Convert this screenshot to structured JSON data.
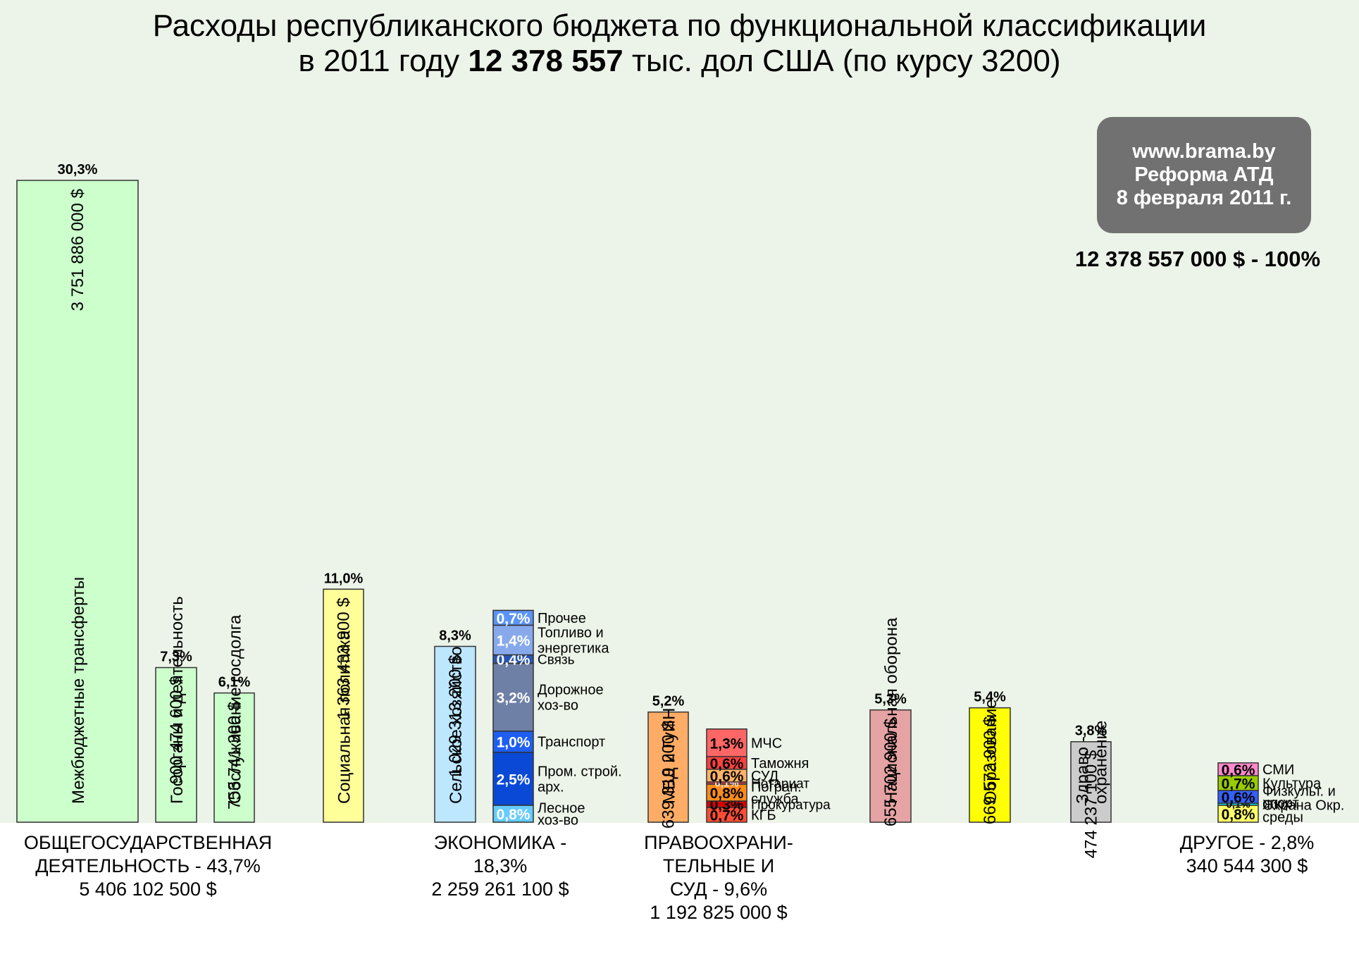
{
  "title_line1": "Расходы республиканского бюджета по функциональной классификации",
  "title_line2_prefix": "в 2011 году",
  "title_line2_bold": "12 378 557",
  "title_line2_suffix": "тыс. дол США (по курсу 3200)",
  "badge": {
    "line1": "www.brama.by",
    "line2": "Реформа АТД",
    "line3": "8 февраля 2011 г."
  },
  "total_text": "12 378 557 000 $ - 100%",
  "groups": {
    "general": {
      "line1": "ОБЩЕГОСУДАРСТВЕННАЯ",
      "line2": "ДЕЯТЕЛЬНОСТЬ - 43,7%",
      "line3": "5 406 102 500 $"
    },
    "economy": {
      "line1": "ЭКОНОМИКА -",
      "line2": "18,3%",
      "line3": "2 259 261 100 $"
    },
    "law": {
      "line1": "ПРАВООХРАНИ-",
      "line2": "ТЕЛЬНЫЕ И",
      "line3": "СУД - 9,6%",
      "line4": "1 192 825 000 $"
    },
    "other": {
      "line1": "ДРУГОЕ - 2,8%",
      "line2": "340 544 300 $"
    }
  },
  "chart_data": {
    "type": "bar",
    "unit": "%",
    "ylim": [
      0,
      30.3
    ],
    "grid": false,
    "bars": [
      {
        "name": "Межбюджетные трансферты",
        "value": 30.3,
        "pct_label": "30,3%",
        "amount": "3 751 886 000 $",
        "color": "#ccffcc"
      },
      {
        "name": "Госорганы и деятельность",
        "value": 7.3,
        "pct_label": "7,3%",
        "amount": "900 474 600 $",
        "color": "#ccffcc"
      },
      {
        "name": "Обслуживание госдолга",
        "value": 6.1,
        "pct_label": "6,1%",
        "amount": "753 741 300 $",
        "color": "#ccffcc"
      },
      {
        "name": "Социальная политика",
        "value": 11.0,
        "pct_label": "11,0%",
        "amount": "1 363 433 900 $",
        "color": "#ffff99"
      },
      {
        "name": "Сельское хозяйство",
        "value": 8.3,
        "pct_label": "8,3%",
        "amount": "1 029 313 200 $",
        "color": "#bde6ff"
      },
      {
        "name": "МВД и ГуИН",
        "value": 5.2,
        "pct_label": "5,2%",
        "amount": "639 319 200 $",
        "color": "#ffad66"
      },
      {
        "name": "Национальная оборона",
        "value": 5.3,
        "pct_label": "5,3%",
        "amount": "655 702 900 $",
        "color": "#e5a3a3"
      },
      {
        "name": "Образование",
        "value": 5.4,
        "pct_label": "5,4%",
        "amount": "669 572 900 $",
        "color": "#ffff00"
      },
      {
        "name": "Здраво - охранение",
        "value": 3.8,
        "pct_label": "3,8%",
        "amount": "474 237 100 $",
        "color": "#cccccc"
      }
    ],
    "stacks": [
      {
        "group": "economy",
        "segments": [
          {
            "value": 0.8,
            "label": "0,8%",
            "name": "Лесное хоз-во",
            "color": "#66ccff"
          },
          {
            "value": 2.5,
            "label": "2,5%",
            "name": "Пром. строй. арх.",
            "color": "#0a49d6"
          },
          {
            "value": 1.0,
            "label": "1,0%",
            "name": "Транспорт",
            "color": "#1e5ef0"
          },
          {
            "value": 3.2,
            "label": "3,2%",
            "name": "Дорожное хоз-во",
            "color": "#6e80a6"
          },
          {
            "value": 0.4,
            "label": "0,4%",
            "name": "Связь",
            "color": "#2855b0"
          },
          {
            "value": 1.4,
            "label": "1,4%",
            "name": "Топливо и энергетика",
            "color": "#87a9ec"
          },
          {
            "value": 0.7,
            "label": "0,7%",
            "name": "Прочее",
            "color": "#5b94f5"
          }
        ]
      },
      {
        "group": "law",
        "segments": [
          {
            "value": 0.7,
            "label": "0,7%",
            "name": "КГБ",
            "color": "#ff4d33"
          },
          {
            "value": 0.3,
            "label": "0,3%",
            "name": "Прокуратура",
            "color": "#d90000"
          },
          {
            "value": 0.8,
            "label": "0,8%",
            "name": "Погран. служба",
            "color": "#ff8c1a"
          },
          {
            "value": 0.1,
            "label": "0,1%",
            "name": "Нотариат",
            "color": "#e04747"
          },
          {
            "value": 0.6,
            "label": "0,6%",
            "name": "СУД",
            "color": "#ffb366"
          },
          {
            "value": 0.6,
            "label": "0,6%",
            "name": "Таможня",
            "color": "#ff4040"
          },
          {
            "value": 1.3,
            "label": "1,3%",
            "name": "МЧС",
            "color": "#ff6666"
          }
        ]
      },
      {
        "group": "other",
        "segments": [
          {
            "value": 0.8,
            "label": "0,8%",
            "name": "Охрана Окр. среды",
            "color": "#ffff66"
          },
          {
            "value": 0.1,
            "label": "0,1%",
            "name": "ЖКХ",
            "color": "#00e5e5"
          },
          {
            "value": 0.6,
            "label": "0,6%",
            "name": "Физкульт. и спорт",
            "color": "#3360ff"
          },
          {
            "value": 0.7,
            "label": "0,7%",
            "name": "Культура",
            "color": "#99cc00"
          },
          {
            "value": 0.6,
            "label": "0,6%",
            "name": "СМИ",
            "color": "#ff88cc"
          }
        ]
      }
    ]
  }
}
